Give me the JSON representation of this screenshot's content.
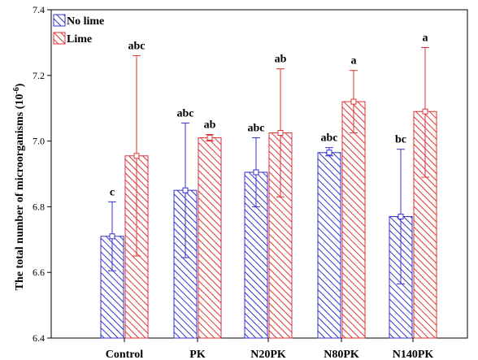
{
  "chart_data": {
    "type": "bar",
    "ylabel": "The total number of microorganisms (10",
    "ylabel_exponent": "-6",
    "ylabel_close": ")",
    "ylim": [
      6.4,
      7.4
    ],
    "yticks": [
      6.4,
      6.6,
      6.8,
      7.0,
      7.2,
      7.4
    ],
    "ytick_labels": [
      "6.4",
      "6.6",
      "6.8",
      "7.0",
      "7.2",
      "7.4"
    ],
    "categories": [
      "Control",
      "PK",
      "N20PK",
      "N80PK",
      "N140PK"
    ],
    "legend_position": "top-left",
    "series": [
      {
        "name": "No lime",
        "color": "#3333cc",
        "hatch": "diagonal",
        "values": [
          6.71,
          6.85,
          6.905,
          6.965,
          6.77
        ],
        "err_upper": [
          6.815,
          7.055,
          7.01,
          6.98,
          6.975
        ],
        "err_lower": [
          6.605,
          6.645,
          6.8,
          6.955,
          6.565
        ],
        "labels": [
          "c",
          "abc",
          "abc",
          "abc",
          "bc"
        ]
      },
      {
        "name": "Lime",
        "color": "#dd3333",
        "hatch": "diagonal",
        "values": [
          6.955,
          7.01,
          7.025,
          7.12,
          7.09
        ],
        "err_upper": [
          7.26,
          7.02,
          7.22,
          7.215,
          7.285
        ],
        "err_lower": [
          6.65,
          7.0,
          6.83,
          7.025,
          6.89
        ],
        "labels": [
          "abc",
          "ab",
          "ab",
          "a",
          "a"
        ]
      }
    ]
  }
}
